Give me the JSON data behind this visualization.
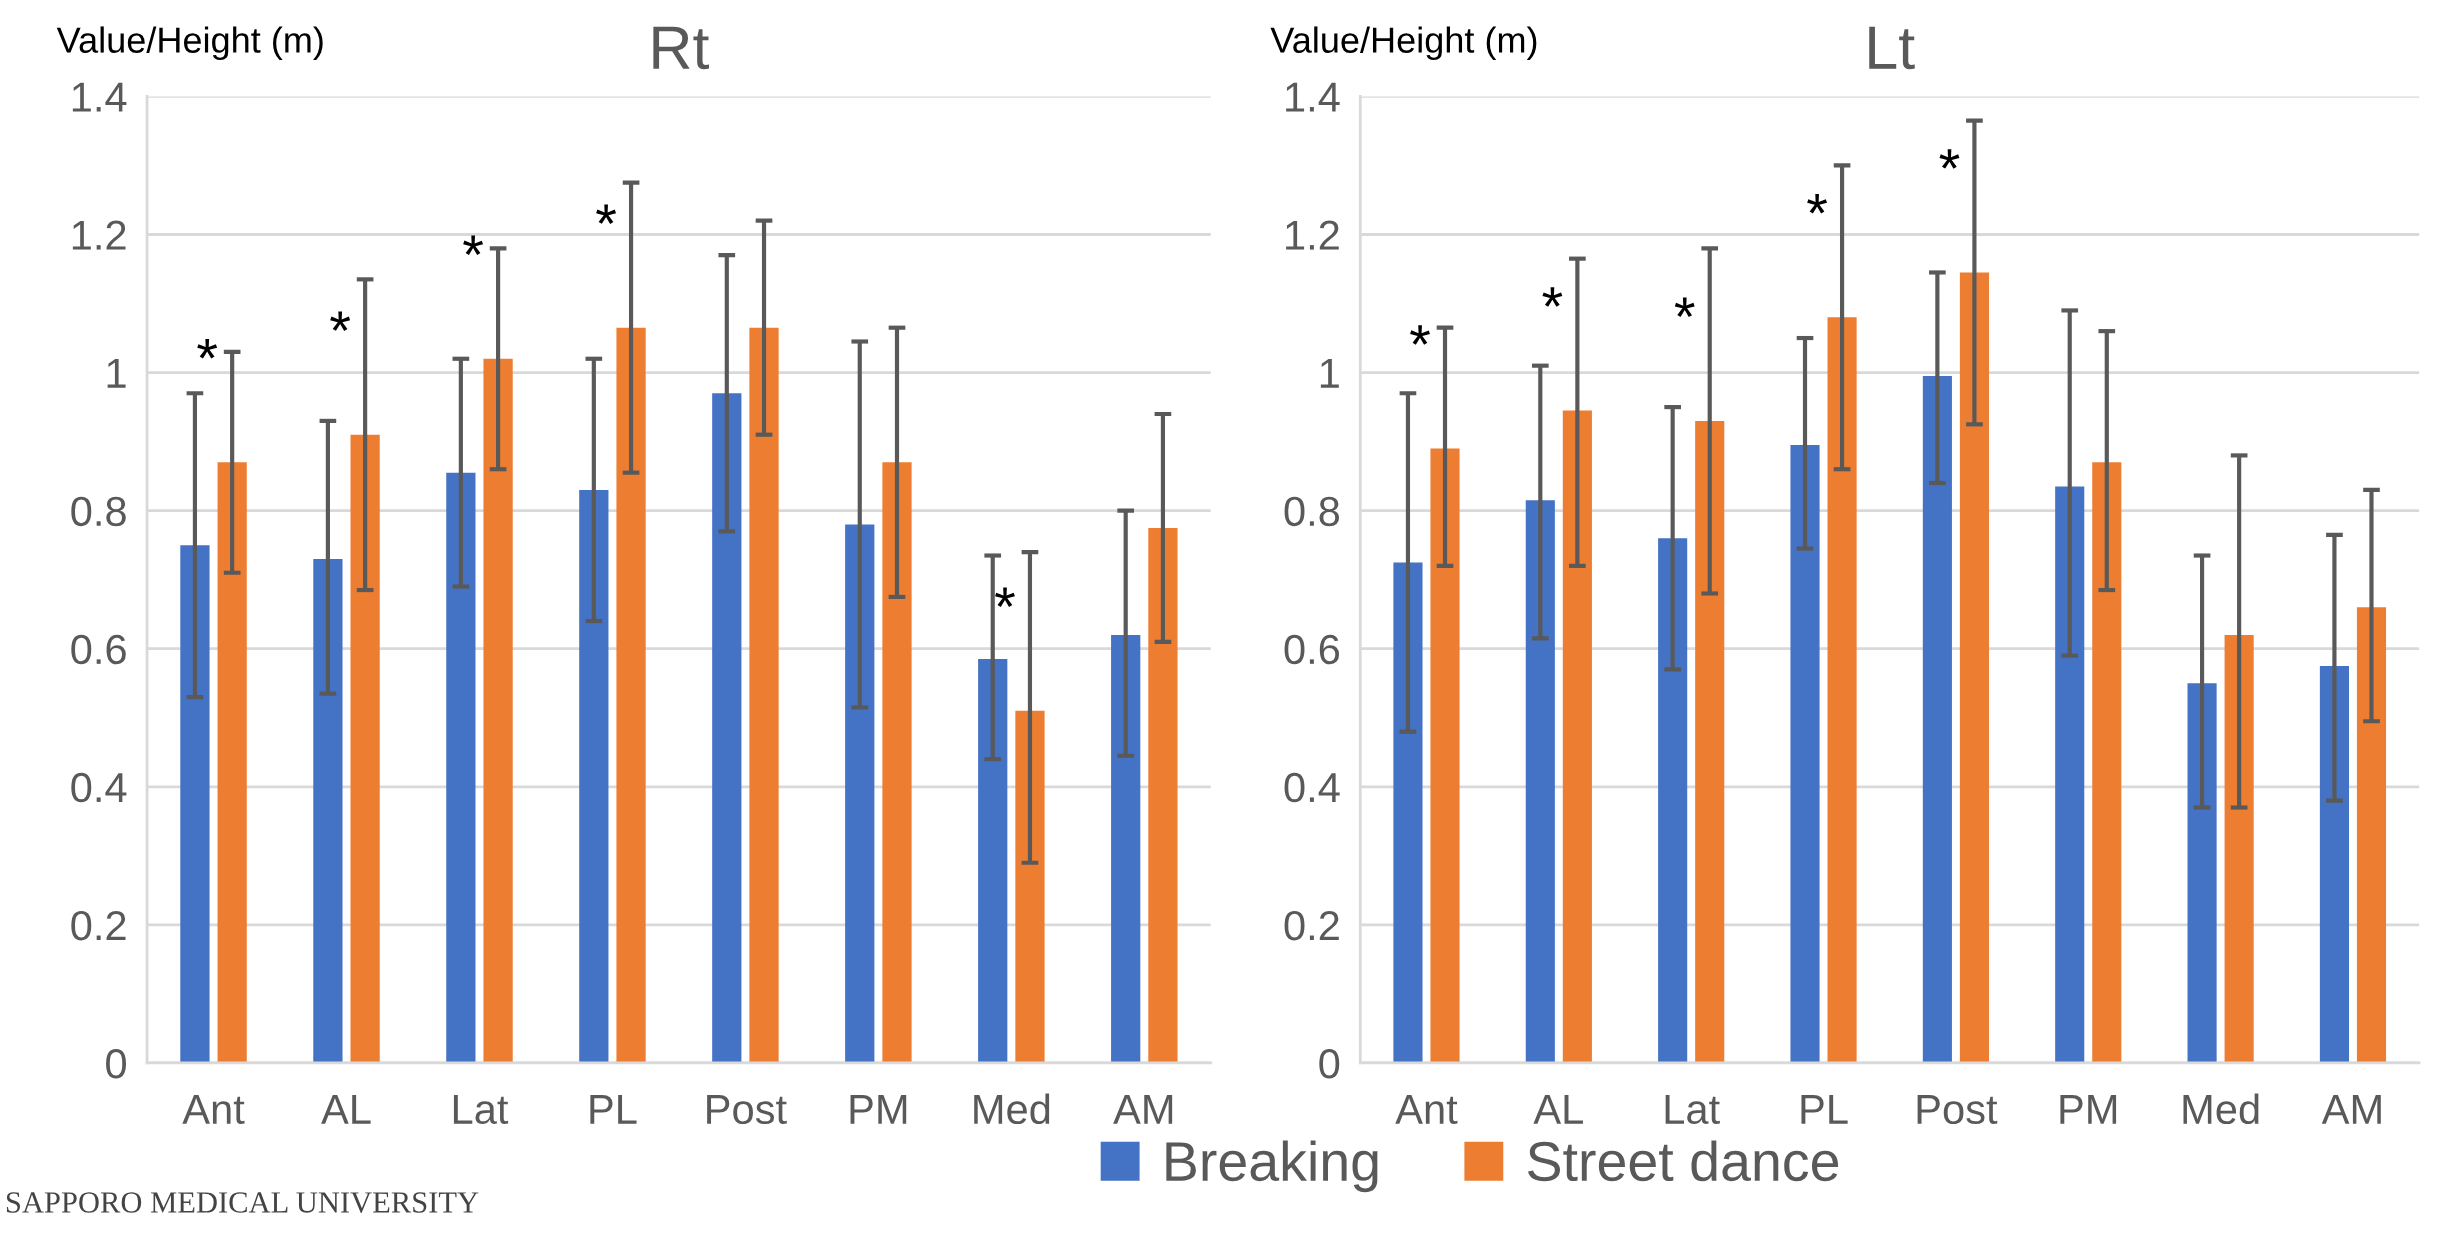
{
  "chart_data": [
    {
      "type": "bar",
      "title": "Rt",
      "ylabel": "Value/Height (m)",
      "categories": [
        "Ant",
        "AL",
        "Lat",
        "PL",
        "Post",
        "PM",
        "Med",
        "AM"
      ],
      "series": [
        {
          "name": "Breaking",
          "color": "#4472c4",
          "values": [
            0.75,
            0.73,
            0.855,
            0.83,
            0.97,
            0.78,
            0.585,
            0.62
          ],
          "errors": [
            [
              0.53,
              0.97
            ],
            [
              0.535,
              0.93
            ],
            [
              0.69,
              1.02
            ],
            [
              0.64,
              1.02
            ],
            [
              0.77,
              1.17
            ],
            [
              0.515,
              1.045
            ],
            [
              0.44,
              0.735
            ],
            [
              0.445,
              0.8
            ]
          ]
        },
        {
          "name": "Street dance",
          "color": "#ed7d31",
          "values": [
            0.87,
            0.91,
            1.02,
            1.065,
            1.065,
            0.87,
            0.51,
            0.775
          ],
          "errors": [
            [
              0.71,
              1.03
            ],
            [
              0.685,
              1.135
            ],
            [
              0.86,
              1.18
            ],
            [
              0.855,
              1.275
            ],
            [
              0.91,
              1.22
            ],
            [
              0.675,
              1.065
            ],
            [
              0.29,
              0.74
            ],
            [
              0.61,
              0.94
            ]
          ],
          "value_labels": [
            "*",
            "*",
            "*",
            "*",
            null,
            null,
            "*",
            null
          ]
        }
      ],
      "ylim": [
        0,
        1.4
      ],
      "yticks": [
        0,
        0.2,
        0.4,
        0.6,
        0.8,
        1,
        1.2,
        1.4
      ],
      "grid": "y",
      "legend": "bottom",
      "annotations": [
        "SAPPORO MEDICAL UNIVERSITY"
      ]
    },
    {
      "type": "bar",
      "title": "Lt",
      "ylabel": "Value/Height (m)",
      "categories": [
        "Ant",
        "AL",
        "Lat",
        "PL",
        "Post",
        "PM",
        "Med",
        "AM"
      ],
      "series": [
        {
          "color": "#4472c4",
          "values": [
            0.725,
            0.815,
            0.76,
            0.895,
            0.995,
            0.835,
            0.55,
            0.575
          ],
          "errors": [
            [
              0.48,
              0.97
            ],
            [
              0.615,
              1.01
            ],
            [
              0.57,
              0.95
            ],
            [
              0.745,
              1.05
            ],
            [
              0.84,
              1.145
            ],
            [
              0.59,
              1.09
            ],
            [
              0.37,
              0.735
            ],
            [
              0.38,
              0.765
            ]
          ]
        },
        {
          "color": "#ed7d31",
          "values": [
            0.89,
            0.945,
            0.93,
            1.08,
            1.145,
            0.87,
            0.62,
            0.66
          ],
          "errors": [
            [
              0.72,
              1.065
            ],
            [
              0.72,
              1.165
            ],
            [
              0.68,
              1.18
            ],
            [
              0.86,
              1.3
            ],
            [
              0.925,
              1.365
            ],
            [
              0.685,
              1.06
            ],
            [
              0.37,
              0.88
            ],
            [
              0.495,
              0.83
            ]
          ],
          "value_labels": [
            "*",
            "*",
            "*",
            "*",
            "*",
            null,
            null,
            null
          ]
        }
      ],
      "ylim": [
        0,
        1.4
      ],
      "yticks": [
        0,
        0.2,
        0.4,
        0.6,
        0.8,
        1,
        1.2,
        1.4
      ],
      "grid": "y"
    }
  ]
}
